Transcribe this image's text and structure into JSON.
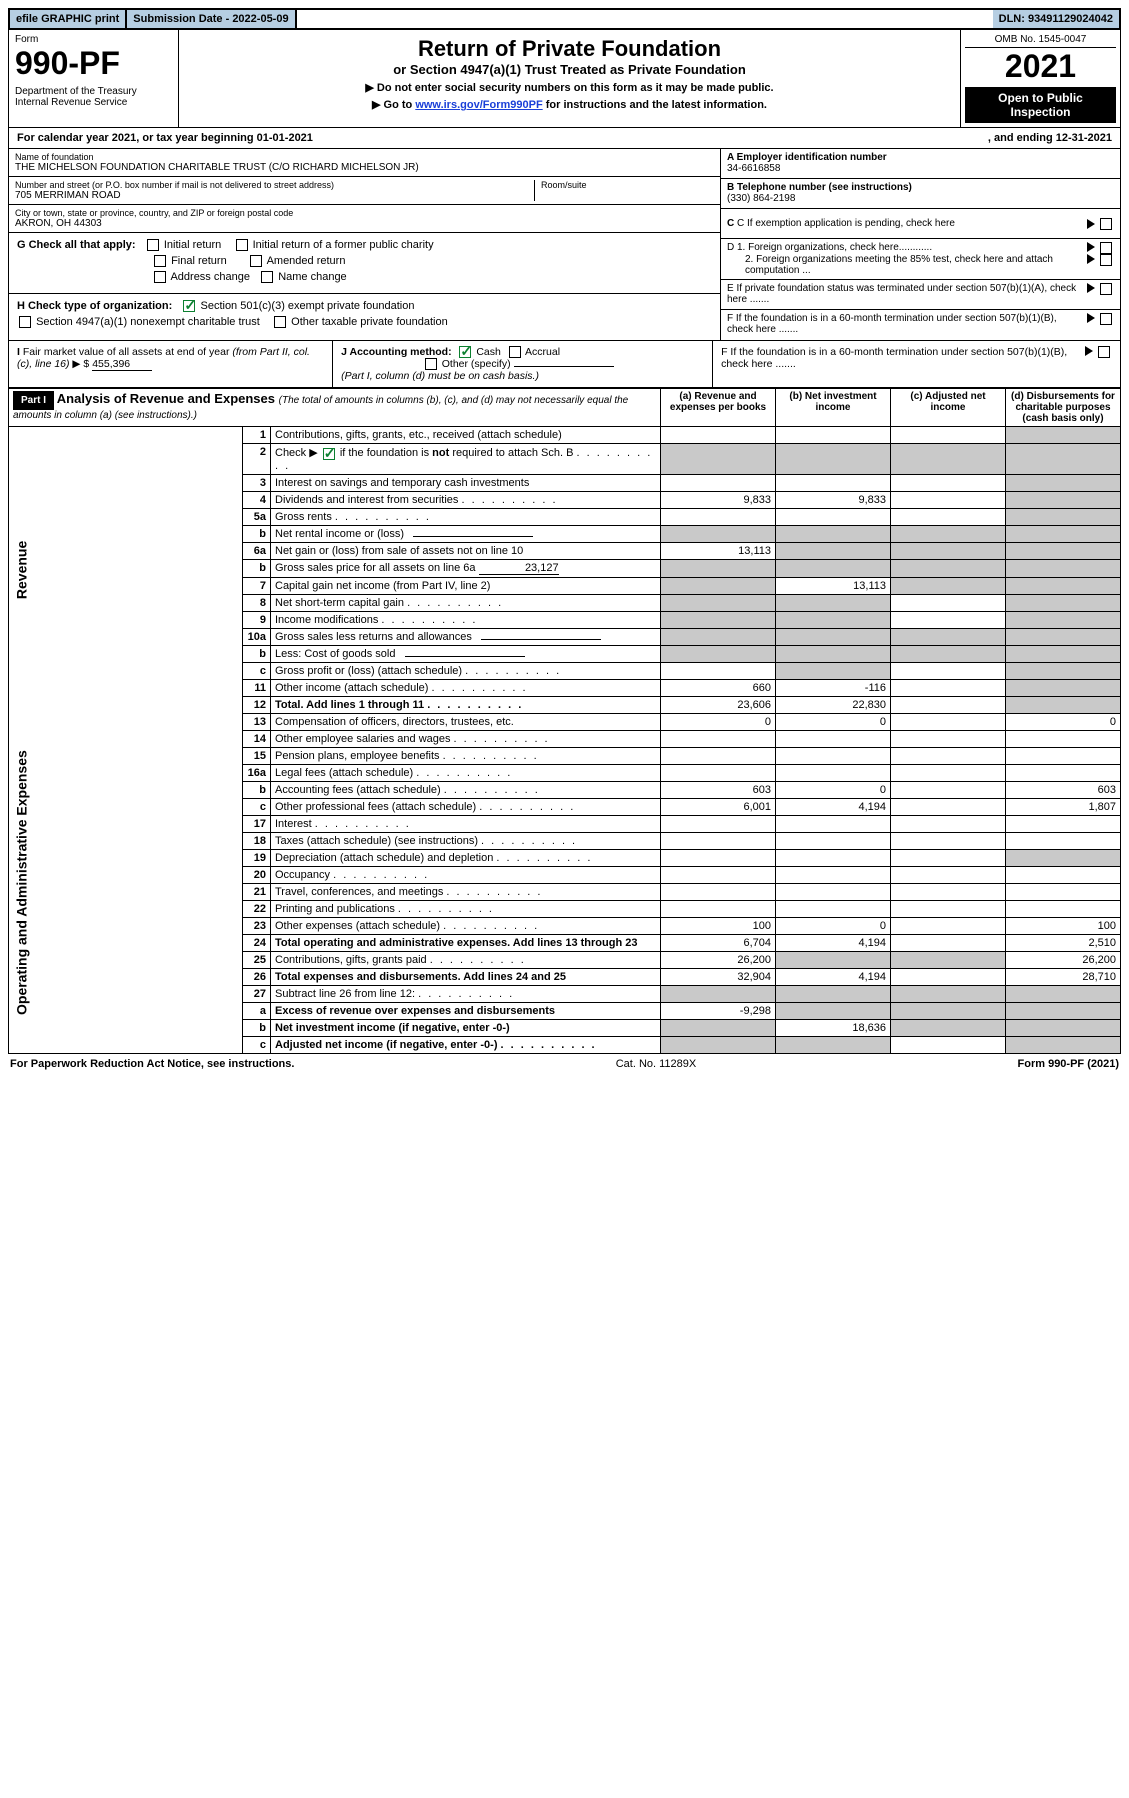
{
  "topbar": {
    "efile": "efile GRAPHIC print",
    "sub_label": "Submission Date - 2022-05-09",
    "dln": "DLN: 93491129024042"
  },
  "header": {
    "form_word": "Form",
    "form_no": "990-PF",
    "dept": "Department of the Treasury\nInternal Revenue Service",
    "title": "Return of Private Foundation",
    "subtitle": "or Section 4947(a)(1) Trust Treated as Private Foundation",
    "note1": "▶ Do not enter social security numbers on this form as it may be made public.",
    "note2_pre": "▶ Go to ",
    "note2_link": "www.irs.gov/Form990PF",
    "note2_post": " for instructions and the latest information.",
    "omb": "OMB No. 1545-0047",
    "year": "2021",
    "open": "Open to Public Inspection"
  },
  "calyear": {
    "pre": "For calendar year 2021, or tax year beginning 01-01-2021",
    "end": ", and ending 12-31-2021"
  },
  "id_block": {
    "name_label": "Name of foundation",
    "name": "THE MICHELSON FOUNDATION CHARITABLE TRUST (C/O RICHARD MICHELSON JR)",
    "addr_label": "Number and street (or P.O. box number if mail is not delivered to street address)",
    "addr": "705 MERRIMAN ROAD",
    "room_label": "Room/suite",
    "city_label": "City or town, state or province, country, and ZIP or foreign postal code",
    "city": "AKRON, OH  44303",
    "a_label": "A Employer identification number",
    "a_val": "34-6616858",
    "b_label": "B Telephone number (see instructions)",
    "b_val": "(330) 864-2198",
    "c_label": "C If exemption application is pending, check here",
    "d1": "D 1. Foreign organizations, check here............",
    "d2": "2. Foreign organizations meeting the 85% test, check here and attach computation ...",
    "e": "E  If private foundation status was terminated under section 507(b)(1)(A), check here .......",
    "f": "F  If the foundation is in a 60-month termination under section 507(b)(1)(B), check here .......",
    "g_label": "G Check all that apply:",
    "g_opts": [
      "Initial return",
      "Initial return of a former public charity",
      "Final return",
      "Amended return",
      "Address change",
      "Name change"
    ],
    "h_label": "H Check type of organization:",
    "h_opts": [
      "Section 501(c)(3) exempt private foundation",
      "Section 4947(a)(1) nonexempt charitable trust",
      "Other taxable private foundation"
    ],
    "i_label": "I Fair market value of all assets at end of year (from Part II, col. (c), line 16) ▶ $",
    "i_val": "455,396",
    "j_label": "J Accounting method:",
    "j_opts": [
      "Cash",
      "Accrual",
      "Other (specify)"
    ],
    "j_note": "(Part I, column (d) must be on cash basis.)"
  },
  "part1": {
    "badge": "Part I",
    "title": "Analysis of Revenue and Expenses",
    "title_note": "(The total of amounts in columns (b), (c), and (d) may not necessarily equal the amounts in column (a) (see instructions).)",
    "cols": {
      "a": "(a)  Revenue and expenses per books",
      "b": "(b)  Net investment income",
      "c": "(c)  Adjusted net income",
      "d": "(d)  Disbursements for charitable purposes (cash basis only)"
    }
  },
  "side_labels": {
    "rev": "Revenue",
    "exp": "Operating and Administrative Expenses"
  },
  "rows": [
    {
      "n": "1",
      "desc": "Contributions, gifts, grants, etc., received (attach schedule)",
      "a": "",
      "b": "",
      "c": "",
      "d": "",
      "shade": [
        "d"
      ]
    },
    {
      "n": "2",
      "desc": "Check ▶ ☑ if the foundation is not required to attach Sch. B",
      "a": "",
      "b": "",
      "c": "",
      "d": "",
      "shade": [
        "a",
        "b",
        "c",
        "d"
      ],
      "checkrow": true
    },
    {
      "n": "3",
      "desc": "Interest on savings and temporary cash investments",
      "a": "",
      "b": "",
      "c": "",
      "d": "",
      "shade": [
        "d"
      ]
    },
    {
      "n": "4",
      "desc": "Dividends and interest from securities",
      "a": "9,833",
      "b": "9,833",
      "c": "",
      "d": "",
      "shade": [
        "d"
      ]
    },
    {
      "n": "5a",
      "desc": "Gross rents",
      "a": "",
      "b": "",
      "c": "",
      "d": "",
      "shade": [
        "d"
      ]
    },
    {
      "n": "b",
      "desc": "Net rental income or (loss)",
      "a": "",
      "b": "",
      "c": "",
      "d": "",
      "shade": [
        "a",
        "b",
        "c",
        "d"
      ],
      "inline_blank": true
    },
    {
      "n": "6a",
      "desc": "Net gain or (loss) from sale of assets not on line 10",
      "a": "13,113",
      "b": "",
      "c": "",
      "d": "",
      "shade": [
        "b",
        "c",
        "d"
      ]
    },
    {
      "n": "b",
      "desc": "Gross sales price for all assets on line 6a",
      "a": "",
      "b": "",
      "c": "",
      "d": "",
      "shade": [
        "a",
        "b",
        "c",
        "d"
      ],
      "inline_val": "23,127"
    },
    {
      "n": "7",
      "desc": "Capital gain net income (from Part IV, line 2)",
      "a": "",
      "b": "13,113",
      "c": "",
      "d": "",
      "shade": [
        "a",
        "c",
        "d"
      ]
    },
    {
      "n": "8",
      "desc": "Net short-term capital gain",
      "a": "",
      "b": "",
      "c": "",
      "d": "",
      "shade": [
        "a",
        "b",
        "d"
      ]
    },
    {
      "n": "9",
      "desc": "Income modifications",
      "a": "",
      "b": "",
      "c": "",
      "d": "",
      "shade": [
        "a",
        "b",
        "d"
      ]
    },
    {
      "n": "10a",
      "desc": "Gross sales less returns and allowances",
      "a": "",
      "b": "",
      "c": "",
      "d": "",
      "shade": [
        "a",
        "b",
        "c",
        "d"
      ],
      "inline_blank": true
    },
    {
      "n": "b",
      "desc": "Less: Cost of goods sold",
      "a": "",
      "b": "",
      "c": "",
      "d": "",
      "shade": [
        "a",
        "b",
        "c",
        "d"
      ],
      "inline_blank": true
    },
    {
      "n": "c",
      "desc": "Gross profit or (loss) (attach schedule)",
      "a": "",
      "b": "",
      "c": "",
      "d": "",
      "shade": [
        "b",
        "d"
      ]
    },
    {
      "n": "11",
      "desc": "Other income (attach schedule)",
      "a": "660",
      "b": "-116",
      "c": "",
      "d": "",
      "shade": [
        "d"
      ]
    },
    {
      "n": "12",
      "desc": "Total. Add lines 1 through 11",
      "a": "23,606",
      "b": "22,830",
      "c": "",
      "d": "",
      "shade": [
        "d"
      ],
      "bold": true
    },
    {
      "n": "13",
      "desc": "Compensation of officers, directors, trustees, etc.",
      "a": "0",
      "b": "0",
      "c": "",
      "d": "0",
      "shade": []
    },
    {
      "n": "14",
      "desc": "Other employee salaries and wages",
      "a": "",
      "b": "",
      "c": "",
      "d": "",
      "shade": []
    },
    {
      "n": "15",
      "desc": "Pension plans, employee benefits",
      "a": "",
      "b": "",
      "c": "",
      "d": "",
      "shade": []
    },
    {
      "n": "16a",
      "desc": "Legal fees (attach schedule)",
      "a": "",
      "b": "",
      "c": "",
      "d": "",
      "shade": []
    },
    {
      "n": "b",
      "desc": "Accounting fees (attach schedule)",
      "a": "603",
      "b": "0",
      "c": "",
      "d": "603",
      "shade": []
    },
    {
      "n": "c",
      "desc": "Other professional fees (attach schedule)",
      "a": "6,001",
      "b": "4,194",
      "c": "",
      "d": "1,807",
      "shade": []
    },
    {
      "n": "17",
      "desc": "Interest",
      "a": "",
      "b": "",
      "c": "",
      "d": "",
      "shade": []
    },
    {
      "n": "18",
      "desc": "Taxes (attach schedule) (see instructions)",
      "a": "",
      "b": "",
      "c": "",
      "d": "",
      "shade": []
    },
    {
      "n": "19",
      "desc": "Depreciation (attach schedule) and depletion",
      "a": "",
      "b": "",
      "c": "",
      "d": "",
      "shade": [
        "d"
      ]
    },
    {
      "n": "20",
      "desc": "Occupancy",
      "a": "",
      "b": "",
      "c": "",
      "d": "",
      "shade": []
    },
    {
      "n": "21",
      "desc": "Travel, conferences, and meetings",
      "a": "",
      "b": "",
      "c": "",
      "d": "",
      "shade": []
    },
    {
      "n": "22",
      "desc": "Printing and publications",
      "a": "",
      "b": "",
      "c": "",
      "d": "",
      "shade": []
    },
    {
      "n": "23",
      "desc": "Other expenses (attach schedule)",
      "a": "100",
      "b": "0",
      "c": "",
      "d": "100",
      "shade": []
    },
    {
      "n": "24",
      "desc": "Total operating and administrative expenses. Add lines 13 through 23",
      "a": "6,704",
      "b": "4,194",
      "c": "",
      "d": "2,510",
      "shade": [],
      "bold": true
    },
    {
      "n": "25",
      "desc": "Contributions, gifts, grants paid",
      "a": "26,200",
      "b": "",
      "c": "",
      "d": "26,200",
      "shade": [
        "b",
        "c"
      ]
    },
    {
      "n": "26",
      "desc": "Total expenses and disbursements. Add lines 24 and 25",
      "a": "32,904",
      "b": "4,194",
      "c": "",
      "d": "28,710",
      "shade": [],
      "bold": true
    },
    {
      "n": "27",
      "desc": "Subtract line 26 from line 12:",
      "a": "",
      "b": "",
      "c": "",
      "d": "",
      "shade": [
        "a",
        "b",
        "c",
        "d"
      ]
    },
    {
      "n": "a",
      "desc": "Excess of revenue over expenses and disbursements",
      "a": "-9,298",
      "b": "",
      "c": "",
      "d": "",
      "shade": [
        "b",
        "c",
        "d"
      ],
      "bold": true
    },
    {
      "n": "b",
      "desc": "Net investment income (if negative, enter -0-)",
      "a": "",
      "b": "18,636",
      "c": "",
      "d": "",
      "shade": [
        "a",
        "c",
        "d"
      ],
      "bold": true
    },
    {
      "n": "c",
      "desc": "Adjusted net income (if negative, enter -0-)",
      "a": "",
      "b": "",
      "c": "",
      "d": "",
      "shade": [
        "a",
        "b",
        "d"
      ],
      "bold": true
    }
  ],
  "footer": {
    "left": "For Paperwork Reduction Act Notice, see instructions.",
    "mid": "Cat. No. 11289X",
    "right": "Form 990-PF (2021)"
  }
}
